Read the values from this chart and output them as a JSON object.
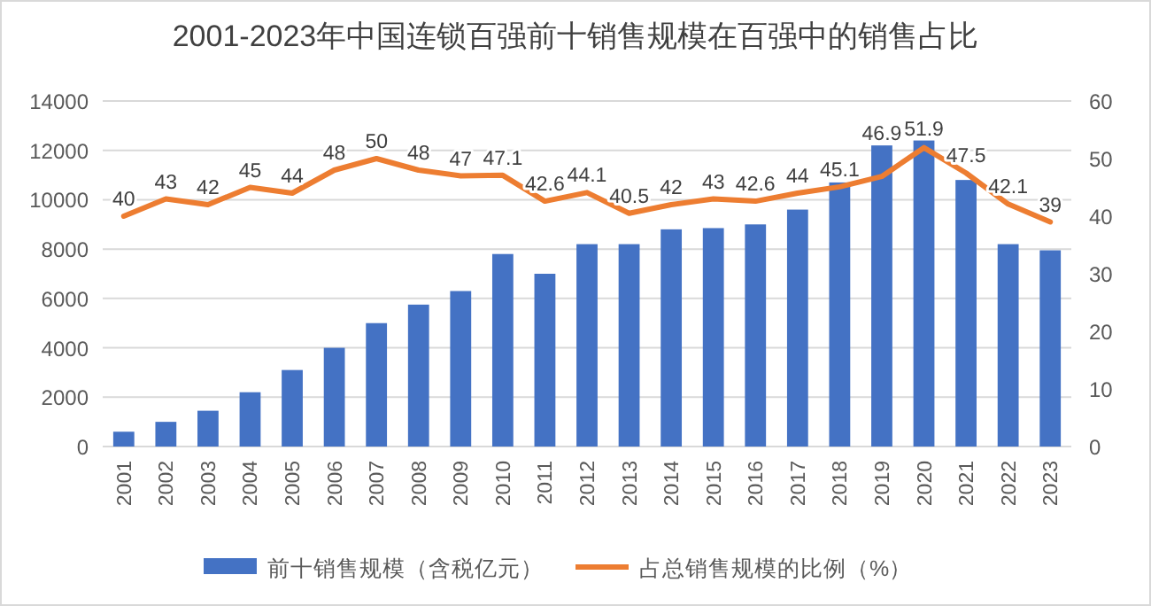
{
  "chart_data": {
    "type": "bar",
    "title": "2001-2023年中国连锁百强前十销售规模在百强中的销售占比",
    "categories": [
      "2001",
      "2002",
      "2003",
      "2004",
      "2005",
      "2006",
      "2007",
      "2008",
      "2009",
      "2010",
      "2011",
      "2012",
      "2013",
      "2014",
      "2015",
      "2016",
      "2017",
      "2018",
      "2019",
      "2020",
      "2021",
      "2022",
      "2023"
    ],
    "series": [
      {
        "name": "前十销售规模（含税亿元）",
        "color": "#4472c4",
        "values": [
          600,
          1000,
          1450,
          2200,
          3100,
          4000,
          5000,
          5750,
          6300,
          7800,
          7000,
          8200,
          8200,
          8800,
          8850,
          9000,
          9600,
          10700,
          12200,
          12400,
          10800,
          8200,
          7950
        ]
      },
      {
        "name": "占总销售规模的比例（%）",
        "type": "line",
        "axis": "y2",
        "color": "#ed7d31",
        "values": [
          40,
          43,
          42,
          45,
          44,
          48,
          50,
          48,
          47,
          47.1,
          42.6,
          44.1,
          40.5,
          42,
          43,
          42.6,
          44,
          45.1,
          46.9,
          51.9,
          47.5,
          42.1,
          39
        ],
        "value_labels": [
          "40",
          "43",
          "42",
          "45",
          "44",
          "48",
          "50",
          "48",
          "47",
          "47.1",
          "42.6",
          "44.1",
          "40.5",
          "42",
          "43",
          "42.6",
          "44",
          "45.1",
          "46.9",
          "51.9",
          "47.5",
          "42.1",
          "39"
        ]
      }
    ],
    "ylim": [
      0,
      14000
    ],
    "yticks": [
      0,
      2000,
      4000,
      6000,
      8000,
      10000,
      12000,
      14000
    ],
    "y2lim": [
      0,
      60
    ],
    "y2ticks": [
      0,
      10,
      20,
      30,
      40,
      50,
      60
    ],
    "grid": "y",
    "legend": "bottom"
  }
}
